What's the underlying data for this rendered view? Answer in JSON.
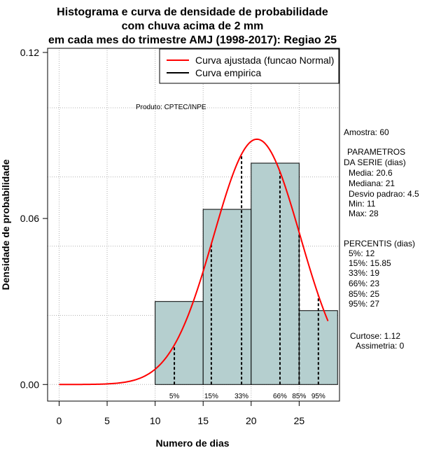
{
  "chart_data": {
    "type": "histogram",
    "title_lines": [
      "Histograma e curva de densidade de probabilidade",
      "com chuva acima de 2 mm",
      "em cada mes do trimestre AMJ (1998-2017): Regiao 25"
    ],
    "xlabel": "Numero de dias",
    "ylabel": "Densidade de probabilidade",
    "xlim": [
      -1.2,
      29.2
    ],
    "ylim": [
      -0.006,
      0.1215
    ],
    "x_ticks": [
      "0",
      "5",
      "10",
      "15",
      "20",
      "25"
    ],
    "y_ticks": [
      "0.00",
      "0.06",
      "0.12"
    ],
    "grid": true,
    "bars": [
      {
        "x0": 10,
        "x1": 15,
        "density": 0.03
      },
      {
        "x0": 15,
        "x1": 20,
        "density": 0.0633
      },
      {
        "x0": 20,
        "x1": 25,
        "density": 0.08
      },
      {
        "x0": 25,
        "x1": 29,
        "density": 0.0267
      }
    ],
    "bar_color": "#b5cfcf",
    "normal_curve": {
      "mean": 20.6,
      "sd": 4.5,
      "x_from": 0,
      "x_to": 28,
      "color": "#ff0000"
    },
    "percentile_lines": [
      {
        "label": "5%",
        "x": 12
      },
      {
        "label": "15%",
        "x": 15.85
      },
      {
        "label": "33%",
        "x": 19
      },
      {
        "label": "66%",
        "x": 23
      },
      {
        "label": "85%",
        "x": 25
      },
      {
        "label": "95%",
        "x": 27
      }
    ],
    "legend": {
      "position": "top-right",
      "entries": [
        {
          "label": "Curva ajustada (funcao Normal)",
          "color": "#ff0000"
        },
        {
          "label": "Curva empirica",
          "color": "#000000"
        }
      ]
    },
    "product_label": "Produto: CPTEC/INPE",
    "side_panel": {
      "sample": "Amostra: 60",
      "params_header": [
        "PARAMETROS",
        "DA SERIE (dias)"
      ],
      "params": [
        "Media: 20.6",
        "Mediana: 21",
        "Desvio padrao: 4.5",
        "Min: 11",
        "Max: 28"
      ],
      "percentiles_header": "PERCENTIS (dias)",
      "percentiles": [
        "5%: 12",
        "15%: 15.85",
        "33%: 19",
        "66%: 23",
        "85%: 25",
        "95%: 27"
      ],
      "kurtosis": "Curtose: 1.12",
      "skewness": "Assimetria: 0"
    }
  }
}
